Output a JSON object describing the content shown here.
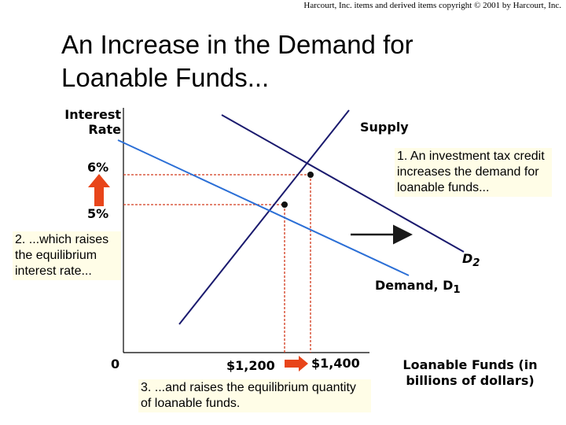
{
  "header": {
    "copyright": "Harcourt, Inc. items and derived items copyright © 2001 by Harcourt, Inc.",
    "title_line1": "An Increase in the Demand for",
    "title_line2": "Loanable Funds..."
  },
  "annotations": {
    "note1": "1. An investment tax credit increases the demand for loanable funds...",
    "note2": "2. ...which raises the equilibrium interest rate...",
    "note3": "3. ...and raises the equilibrium quantity of loanable funds."
  },
  "colors": {
    "supply": "#1a1a6e",
    "demand_d1": "#2b6fd6",
    "demand_d2": "#1a1a6e",
    "guides": "#d23a1c",
    "arrow_up": "#e8451a"
  },
  "chart_data": {
    "type": "line",
    "title": "An Increase in the Demand for Loanable Funds...",
    "ylabel": "Interest Rate",
    "xlabel": "Loanable Funds (in billions of dollars)",
    "origin_label": "0",
    "y_ticks": [
      {
        "label": "6%",
        "value": 6
      },
      {
        "label": "5%",
        "value": 5
      }
    ],
    "x_ticks": [
      {
        "label": "$1,200",
        "value": 1200
      },
      {
        "label": "$1,400",
        "value": 1400
      }
    ],
    "series": [
      {
        "name": "Supply",
        "role": "supply"
      },
      {
        "name": "Demand, D1",
        "role": "demand-initial"
      },
      {
        "name": "D2",
        "role": "demand-shifted"
      }
    ],
    "equilibria": [
      {
        "label": "initial",
        "quantity": 1200,
        "rate": 5
      },
      {
        "label": "new",
        "quantity": 1400,
        "rate": 6
      }
    ],
    "shift": "rightward increase in demand from D1 to D2",
    "labels": {
      "supply": "Supply",
      "demand1_prefix": "Demand, D",
      "demand1_sub": "1",
      "demand2_main": "D",
      "demand2_sub": "2"
    }
  }
}
